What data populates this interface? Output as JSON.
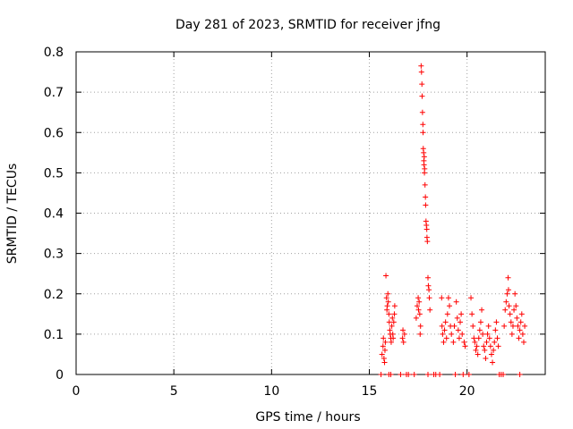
{
  "chart_data": {
    "type": "scatter",
    "title": "Day 281 of 2023, SRMTID for receiver jfng",
    "xlabel": "GPS time / hours",
    "ylabel": "SRMTID / TECUs",
    "xlim": [
      0,
      24
    ],
    "ylim": [
      0,
      0.8
    ],
    "xticks": [
      0,
      5,
      10,
      15,
      20
    ],
    "yticks": [
      0,
      0.1,
      0.2,
      0.3,
      0.4,
      0.5,
      0.6,
      0.7,
      0.8
    ],
    "xtick_labels": [
      "0",
      "5",
      "10",
      "15",
      "20"
    ],
    "ytick_labels": [
      "0",
      "0.1",
      "0.2",
      "0.3",
      "0.4",
      "0.5",
      "0.6",
      "0.7",
      "0.8"
    ],
    "grid": true,
    "marker": "plus",
    "color": "#ff0000",
    "series": [
      {
        "name": "SRMTID",
        "points": [
          [
            15.6,
            0.0
          ],
          [
            15.65,
            0.05
          ],
          [
            15.7,
            0.07
          ],
          [
            15.72,
            0.09
          ],
          [
            15.75,
            0.04
          ],
          [
            15.78,
            0.03
          ],
          [
            15.8,
            0.06
          ],
          [
            15.82,
            0.08
          ],
          [
            15.85,
            0.245
          ],
          [
            15.88,
            0.19
          ],
          [
            15.9,
            0.16
          ],
          [
            15.92,
            0.17
          ],
          [
            15.95,
            0.2
          ],
          [
            15.97,
            0.18
          ],
          [
            16.0,
            0.15
          ],
          [
            16.02,
            0.13
          ],
          [
            16.05,
            0.11
          ],
          [
            16.07,
            0.1
          ],
          [
            16.1,
            0.09
          ],
          [
            16.12,
            0.08
          ],
          [
            16.15,
            0.12
          ],
          [
            16.18,
            0.14
          ],
          [
            16.2,
            0.1
          ],
          [
            16.22,
            0.09
          ],
          [
            16.25,
            0.13
          ],
          [
            16.28,
            0.15
          ],
          [
            16.3,
            0.17
          ],
          [
            16.0,
            0.0
          ],
          [
            16.1,
            0.0
          ],
          [
            16.6,
            0.0
          ],
          [
            16.7,
            0.09
          ],
          [
            16.72,
            0.11
          ],
          [
            16.75,
            0.08
          ],
          [
            16.8,
            0.1
          ],
          [
            16.9,
            0.0
          ],
          [
            17.0,
            0.0
          ],
          [
            17.3,
            0.0
          ],
          [
            17.4,
            0.14
          ],
          [
            17.45,
            0.17
          ],
          [
            17.5,
            0.19
          ],
          [
            17.52,
            0.16
          ],
          [
            17.55,
            0.18
          ],
          [
            17.58,
            0.15
          ],
          [
            17.6,
            0.1
          ],
          [
            17.62,
            0.12
          ],
          [
            17.65,
            0.765
          ],
          [
            17.67,
            0.75
          ],
          [
            17.69,
            0.72
          ],
          [
            17.7,
            0.69
          ],
          [
            17.72,
            0.65
          ],
          [
            17.74,
            0.62
          ],
          [
            17.75,
            0.6
          ],
          [
            17.76,
            0.56
          ],
          [
            17.78,
            0.55
          ],
          [
            17.79,
            0.53
          ],
          [
            17.8,
            0.52
          ],
          [
            17.81,
            0.54
          ],
          [
            17.82,
            0.5
          ],
          [
            17.83,
            0.51
          ],
          [
            17.85,
            0.47
          ],
          [
            17.87,
            0.44
          ],
          [
            17.88,
            0.42
          ],
          [
            17.9,
            0.38
          ],
          [
            17.92,
            0.37
          ],
          [
            17.94,
            0.36
          ],
          [
            17.95,
            0.34
          ],
          [
            17.97,
            0.33
          ],
          [
            18.0,
            0.24
          ],
          [
            18.02,
            0.22
          ],
          [
            18.05,
            0.21
          ],
          [
            18.07,
            0.19
          ],
          [
            18.1,
            0.16
          ],
          [
            18.0,
            0.0
          ],
          [
            18.3,
            0.0
          ],
          [
            18.4,
            0.0
          ],
          [
            18.6,
            0.0
          ],
          [
            18.7,
            0.19
          ],
          [
            18.72,
            0.12
          ],
          [
            18.75,
            0.1
          ],
          [
            18.8,
            0.08
          ],
          [
            18.85,
            0.11
          ],
          [
            18.9,
            0.13
          ],
          [
            18.95,
            0.09
          ],
          [
            19.0,
            0.15
          ],
          [
            19.05,
            0.19
          ],
          [
            19.1,
            0.17
          ],
          [
            19.15,
            0.12
          ],
          [
            19.2,
            0.1
          ],
          [
            19.3,
            0.08
          ],
          [
            19.35,
            0.12
          ],
          [
            19.4,
            0.0
          ],
          [
            19.45,
            0.18
          ],
          [
            19.5,
            0.14
          ],
          [
            19.55,
            0.11
          ],
          [
            19.6,
            0.09
          ],
          [
            19.65,
            0.13
          ],
          [
            19.7,
            0.15
          ],
          [
            19.75,
            0.1
          ],
          [
            19.8,
            0.0
          ],
          [
            19.85,
            0.08
          ],
          [
            19.9,
            0.07
          ],
          [
            20.1,
            0.0
          ],
          [
            20.2,
            0.19
          ],
          [
            20.25,
            0.15
          ],
          [
            20.3,
            0.12
          ],
          [
            20.35,
            0.09
          ],
          [
            20.4,
            0.08
          ],
          [
            20.45,
            0.06
          ],
          [
            20.5,
            0.07
          ],
          [
            20.55,
            0.05
          ],
          [
            20.6,
            0.09
          ],
          [
            20.65,
            0.11
          ],
          [
            20.7,
            0.13
          ],
          [
            20.75,
            0.16
          ],
          [
            20.8,
            0.1
          ],
          [
            20.85,
            0.07
          ],
          [
            20.9,
            0.06
          ],
          [
            20.95,
            0.04
          ],
          [
            21.0,
            0.08
          ],
          [
            21.05,
            0.1
          ],
          [
            21.1,
            0.12
          ],
          [
            21.15,
            0.09
          ],
          [
            21.2,
            0.07
          ],
          [
            21.25,
            0.05
          ],
          [
            21.3,
            0.03
          ],
          [
            21.35,
            0.06
          ],
          [
            21.4,
            0.08
          ],
          [
            21.45,
            0.11
          ],
          [
            21.5,
            0.13
          ],
          [
            21.55,
            0.09
          ],
          [
            21.6,
            0.07
          ],
          [
            21.65,
            0.0
          ],
          [
            21.75,
            0.0
          ],
          [
            21.85,
            0.0
          ],
          [
            21.9,
            0.12
          ],
          [
            21.95,
            0.16
          ],
          [
            22.0,
            0.18
          ],
          [
            22.05,
            0.2
          ],
          [
            22.1,
            0.24
          ],
          [
            22.12,
            0.21
          ],
          [
            22.15,
            0.17
          ],
          [
            22.2,
            0.15
          ],
          [
            22.25,
            0.13
          ],
          [
            22.3,
            0.1
          ],
          [
            22.35,
            0.12
          ],
          [
            22.4,
            0.16
          ],
          [
            22.45,
            0.2
          ],
          [
            22.5,
            0.17
          ],
          [
            22.55,
            0.14
          ],
          [
            22.6,
            0.12
          ],
          [
            22.65,
            0.09
          ],
          [
            22.7,
            0.11
          ],
          [
            22.75,
            0.13
          ],
          [
            22.8,
            0.15
          ],
          [
            22.85,
            0.1
          ],
          [
            22.9,
            0.08
          ],
          [
            22.95,
            0.12
          ],
          [
            22.7,
            0.0
          ]
        ]
      }
    ]
  }
}
